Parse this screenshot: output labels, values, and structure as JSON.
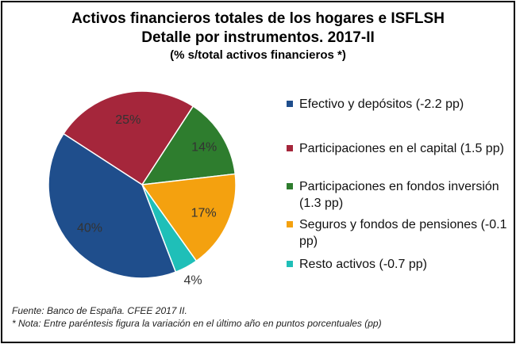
{
  "chart_data": {
    "type": "pie",
    "title_line1": "Activos financieros totales de los hogares e ISFLSH",
    "title_line2": "Detalle por instrumentos. 2017-II",
    "subtitle": "(% s/total activos financieros *)",
    "slices": [
      {
        "label": "Efectivo y depósitos  (-2.2 pp)",
        "value": 40,
        "value_label": "40%",
        "color": "#1F4E8C"
      },
      {
        "label": "Participaciones en el capital (1.5 pp)",
        "value": 25,
        "value_label": "25%",
        "color": "#A5263B"
      },
      {
        "label": "Participaciones en fondos inversión  (1.3 pp)",
        "value": 14,
        "value_label": "14%",
        "color": "#2E7D2E"
      },
      {
        "label": "Seguros y fondos de pensiones (-0.1 pp)",
        "value": 17,
        "value_label": "17%",
        "color": "#F4A10F"
      },
      {
        "label": "Resto activos  (-0.7 pp)",
        "value": 4,
        "value_label": "4%",
        "color": "#1FBFB8"
      }
    ],
    "legend_position": "right"
  },
  "footnotes": {
    "source": "Fuente: Banco de España. CFEE 2017 II.",
    "note": "* Nota: Entre paréntesis figura la variación en el último año en puntos porcentuales (pp)"
  }
}
